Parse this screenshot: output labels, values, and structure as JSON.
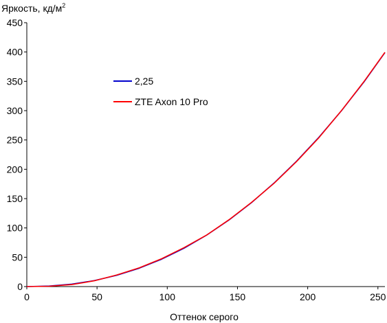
{
  "chart_data": {
    "type": "line",
    "ylabel": "Яркость, кд/м",
    "ylabel_superscript": "2",
    "xlabel": "Оттенок серого",
    "xlim": [
      0,
      255
    ],
    "ylim": [
      0,
      450
    ],
    "x_ticks": [
      0,
      50,
      100,
      150,
      200,
      250
    ],
    "y_ticks": [
      0,
      50,
      100,
      150,
      200,
      250,
      300,
      350,
      400,
      450
    ],
    "grid": false,
    "legend_position": "upper-left-center",
    "series": [
      {
        "name": "2,25",
        "color": "#0000cc",
        "x": [
          0,
          16,
          32,
          48,
          64,
          80,
          96,
          112,
          128,
          144,
          160,
          176,
          192,
          208,
          224,
          240,
          255
        ],
        "y": [
          0,
          0.9,
          4.2,
          10.2,
          19.2,
          31.3,
          46.6,
          65.4,
          87.6,
          113.5,
          143.1,
          176.5,
          213.6,
          254.7,
          299.8,
          348.8,
          399.0
        ]
      },
      {
        "name": "ZTE Axon 10 Pro",
        "color": "#ff0000",
        "x": [
          0,
          16,
          32,
          48,
          64,
          80,
          96,
          112,
          128,
          144,
          160,
          176,
          192,
          208,
          224,
          240,
          255
        ],
        "y": [
          0,
          0.6,
          3.4,
          9.8,
          19.8,
          32.0,
          47.5,
          66.5,
          87.8,
          114.0,
          143.5,
          176.0,
          213.0,
          254.0,
          300.0,
          349.5,
          399.5
        ]
      }
    ]
  }
}
